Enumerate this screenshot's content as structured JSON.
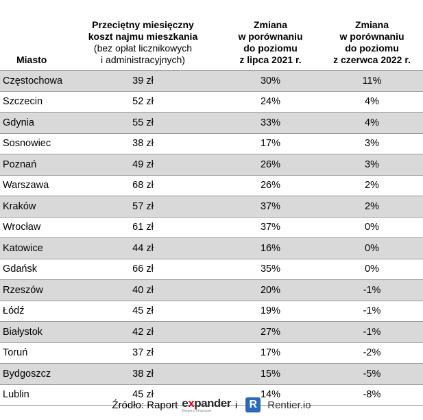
{
  "headers": {
    "city": "Miasto",
    "cost_line1": "Przeciętny miesięczny",
    "cost_line2": "koszt najmu mieszkania",
    "cost_line3": "(bez opłat licznikowych",
    "cost_line4": "i administracyjnych)",
    "change2021_line1": "Zmiana",
    "change2021_line2": "w porównaniu",
    "change2021_line3": "do poziomu",
    "change2021_line4": "z lipca 2021 r.",
    "change2022_line1": "Zmiana",
    "change2022_line2": "w porównaniu",
    "change2022_line3": "do poziomu",
    "change2022_line4": "z czerwca 2022 r."
  },
  "rows": [
    {
      "city": "Częstochowa",
      "cost": "39 zł",
      "change_2021": "30%",
      "change_2022": "11%"
    },
    {
      "city": "Szczecin",
      "cost": "52 zł",
      "change_2021": "24%",
      "change_2022": "4%"
    },
    {
      "city": "Gdynia",
      "cost": "55 zł",
      "change_2021": "33%",
      "change_2022": "4%"
    },
    {
      "city": "Sosnowiec",
      "cost": "38 zł",
      "change_2021": "17%",
      "change_2022": "3%"
    },
    {
      "city": "Poznań",
      "cost": "49 zł",
      "change_2021": "26%",
      "change_2022": "3%"
    },
    {
      "city": "Warszawa",
      "cost": "68 zł",
      "change_2021": "26%",
      "change_2022": "2%"
    },
    {
      "city": "Kraków",
      "cost": "57 zł",
      "change_2021": "37%",
      "change_2022": "2%"
    },
    {
      "city": "Wrocław",
      "cost": "61 zł",
      "change_2021": "37%",
      "change_2022": "0%"
    },
    {
      "city": "Katowice",
      "cost": "44 zł",
      "change_2021": "16%",
      "change_2022": "0%"
    },
    {
      "city": "Gdańsk",
      "cost": "66 zł",
      "change_2021": "35%",
      "change_2022": "0%"
    },
    {
      "city": "Rzeszów",
      "cost": "40 zł",
      "change_2021": "20%",
      "change_2022": "-1%"
    },
    {
      "city": "Łódź",
      "cost": "45 zł",
      "change_2021": "19%",
      "change_2022": "-1%"
    },
    {
      "city": "Białystok",
      "cost": "42 zł",
      "change_2021": "27%",
      "change_2022": "-1%"
    },
    {
      "city": "Toruń",
      "cost": "37 zł",
      "change_2021": "17%",
      "change_2022": "-2%"
    },
    {
      "city": "Bydgoszcz",
      "cost": "38 zł",
      "change_2021": "15%",
      "change_2022": "-5%"
    },
    {
      "city": "Lublin",
      "cost": "45 zł",
      "change_2021": "14%",
      "change_2022": "-8%"
    }
  ],
  "footer": {
    "source_label": "Źródło: Raport",
    "expander_prefix": "e",
    "expander_x": "x",
    "expander_rest": "pander",
    "expander_sub": "Eksperci Finansowi",
    "conjunction": "i",
    "rentier_letter": "R",
    "rentier_name": "Rentier.io"
  },
  "colors": {
    "shaded_row": "#d9d9d9",
    "expander_red": "#e3001b",
    "rentier_blue": "#2a6ab8"
  }
}
